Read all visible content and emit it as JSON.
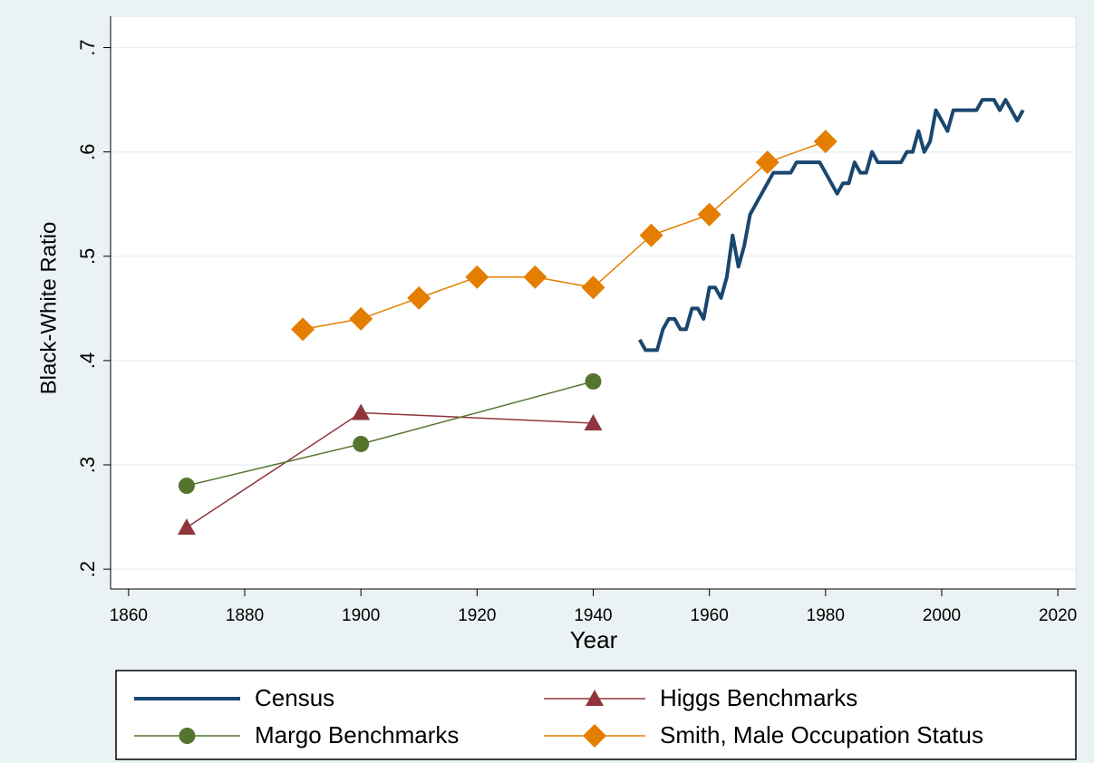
{
  "chart_data": {
    "type": "line",
    "x_label": "Year",
    "y_label": "Black-White Ratio",
    "xlim": [
      1856.9,
      2023.1
    ],
    "ylim": [
      0.181,
      0.73
    ],
    "xticks": [
      1860,
      1880,
      1900,
      1920,
      1940,
      1960,
      1980,
      2000,
      2020
    ],
    "yticks": [
      {
        "value": 0.2,
        "label": ".2"
      },
      {
        "value": 0.3,
        "label": ".3"
      },
      {
        "value": 0.4,
        "label": ".4"
      },
      {
        "value": 0.5,
        "label": ".5"
      },
      {
        "value": 0.6,
        "label": ".6"
      },
      {
        "value": 0.7,
        "label": ".7"
      }
    ],
    "grid": true,
    "legend": "bottom",
    "series": [
      {
        "name": "Census",
        "color": "#1a476f",
        "marker": "none",
        "x": [
          1948,
          1949,
          1950,
          1951,
          1952,
          1953,
          1954,
          1955,
          1956,
          1957,
          1958,
          1959,
          1960,
          1961,
          1962,
          1963,
          1964,
          1965,
          1966,
          1967,
          1968,
          1969,
          1970,
          1971,
          1972,
          1973,
          1974,
          1975,
          1976,
          1977,
          1978,
          1979,
          1980,
          1981,
          1982,
          1983,
          1984,
          1985,
          1986,
          1987,
          1988,
          1989,
          1990,
          1991,
          1992,
          1993,
          1994,
          1995,
          1996,
          1997,
          1998,
          1999,
          2000,
          2001,
          2002,
          2003,
          2004,
          2005,
          2006,
          2007,
          2008,
          2009,
          2010,
          2011,
          2012,
          2013,
          2014
        ],
        "values": [
          0.42,
          0.41,
          0.41,
          0.41,
          0.43,
          0.44,
          0.44,
          0.43,
          0.43,
          0.45,
          0.45,
          0.44,
          0.47,
          0.47,
          0.46,
          0.48,
          0.52,
          0.49,
          0.51,
          0.54,
          0.55,
          0.56,
          0.57,
          0.58,
          0.58,
          0.58,
          0.58,
          0.59,
          0.59,
          0.59,
          0.59,
          0.59,
          0.58,
          0.57,
          0.56,
          0.57,
          0.57,
          0.59,
          0.58,
          0.58,
          0.6,
          0.59,
          0.59,
          0.59,
          0.59,
          0.59,
          0.6,
          0.6,
          0.62,
          0.6,
          0.61,
          0.64,
          0.63,
          0.62,
          0.64,
          0.64,
          0.64,
          0.64,
          0.64,
          0.65,
          0.65,
          0.65,
          0.64,
          0.65,
          0.64,
          0.63,
          0.64
        ]
      },
      {
        "name": "Higgs Benchmarks",
        "color": "#90353b",
        "marker": "triangle",
        "x": [
          1870,
          1900,
          1940
        ],
        "values": [
          0.24,
          0.35,
          0.34
        ]
      },
      {
        "name": "Margo Benchmarks",
        "color": "#55752f",
        "marker": "circle",
        "x": [
          1870,
          1900,
          1940
        ],
        "values": [
          0.28,
          0.32,
          0.38
        ]
      },
      {
        "name": "Smith, Male Occupation Status",
        "color": "#e37e00",
        "marker": "diamond",
        "x": [
          1890,
          1900,
          1910,
          1920,
          1930,
          1940,
          1950,
          1960,
          1970,
          1980
        ],
        "values": [
          0.43,
          0.44,
          0.46,
          0.48,
          0.48,
          0.47,
          0.52,
          0.54,
          0.59,
          0.61
        ]
      }
    ]
  }
}
